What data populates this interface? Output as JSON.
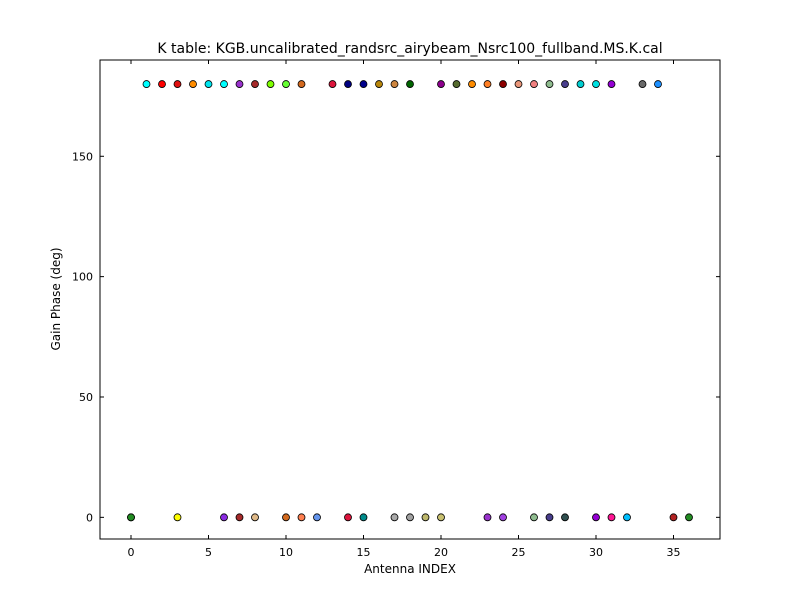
{
  "chart_data": {
    "type": "scatter",
    "title": "K table: KGB.uncalibrated_randsrc_airybeam_Nsrc100_fullband.MS.K.cal",
    "xlabel": "Antenna INDEX",
    "ylabel": "Gain Phase (deg)",
    "xlim": [
      -2,
      38
    ],
    "ylim": [
      -9,
      190
    ],
    "xticks": [
      0,
      5,
      10,
      15,
      20,
      25,
      30,
      35
    ],
    "yticks": [
      0,
      50,
      100,
      150
    ],
    "grid": false,
    "legend": "none",
    "points": [
      {
        "x": 1,
        "y": 180,
        "color": "#00ffff"
      },
      {
        "x": 2,
        "y": 180,
        "color": "#ff0000"
      },
      {
        "x": 3,
        "y": 180,
        "color": "#e01010"
      },
      {
        "x": 4,
        "y": 180,
        "color": "#ff8c00"
      },
      {
        "x": 5,
        "y": 180,
        "color": "#00e5ee"
      },
      {
        "x": 6,
        "y": 180,
        "color": "#00ffff"
      },
      {
        "x": 7,
        "y": 180,
        "color": "#9932cc"
      },
      {
        "x": 8,
        "y": 180,
        "color": "#a52a2a"
      },
      {
        "x": 9,
        "y": 180,
        "color": "#7fff00"
      },
      {
        "x": 10,
        "y": 180,
        "color": "#66ff33"
      },
      {
        "x": 11,
        "y": 180,
        "color": "#d2691e"
      },
      {
        "x": 13,
        "y": 180,
        "color": "#dc143c"
      },
      {
        "x": 14,
        "y": 180,
        "color": "#000080"
      },
      {
        "x": 15,
        "y": 180,
        "color": "#00008b"
      },
      {
        "x": 16,
        "y": 180,
        "color": "#b8860b"
      },
      {
        "x": 17,
        "y": 180,
        "color": "#cd853f"
      },
      {
        "x": 18,
        "y": 180,
        "color": "#006400"
      },
      {
        "x": 20,
        "y": 180,
        "color": "#8b008b"
      },
      {
        "x": 21,
        "y": 180,
        "color": "#556b2f"
      },
      {
        "x": 22,
        "y": 180,
        "color": "#ff8c00"
      },
      {
        "x": 23,
        "y": 180,
        "color": "#ff7f24"
      },
      {
        "x": 24,
        "y": 180,
        "color": "#8b0000"
      },
      {
        "x": 25,
        "y": 180,
        "color": "#e9967a"
      },
      {
        "x": 26,
        "y": 180,
        "color": "#f08080"
      },
      {
        "x": 27,
        "y": 180,
        "color": "#8fbc8f"
      },
      {
        "x": 28,
        "y": 180,
        "color": "#483d8b"
      },
      {
        "x": 29,
        "y": 180,
        "color": "#00ced1"
      },
      {
        "x": 30,
        "y": 180,
        "color": "#00e0e0"
      },
      {
        "x": 31,
        "y": 180,
        "color": "#9400d3"
      },
      {
        "x": 33,
        "y": 180,
        "color": "#696969"
      },
      {
        "x": 34,
        "y": 180,
        "color": "#1e90ff"
      },
      {
        "x": 0,
        "y": 0,
        "color": "#00aa00"
      },
      {
        "x": 0,
        "y": 0,
        "color": "#228b22"
      },
      {
        "x": 3,
        "y": 0,
        "color": "#ffff00"
      },
      {
        "x": 6,
        "y": 0,
        "color": "#8a2be2"
      },
      {
        "x": 7,
        "y": 0,
        "color": "#a52a2a"
      },
      {
        "x": 8,
        "y": 0,
        "color": "#deb887"
      },
      {
        "x": 10,
        "y": 0,
        "color": "#d2691e"
      },
      {
        "x": 11,
        "y": 0,
        "color": "#ff7f50"
      },
      {
        "x": 12,
        "y": 0,
        "color": "#6495ed"
      },
      {
        "x": 14,
        "y": 0,
        "color": "#dc143c"
      },
      {
        "x": 15,
        "y": 0,
        "color": "#008b8b"
      },
      {
        "x": 17,
        "y": 0,
        "color": "#a9a9a9"
      },
      {
        "x": 18,
        "y": 0,
        "color": "#a0a0a0"
      },
      {
        "x": 19,
        "y": 0,
        "color": "#bdb76b"
      },
      {
        "x": 20,
        "y": 0,
        "color": "#c8c070"
      },
      {
        "x": 23,
        "y": 0,
        "color": "#9932cc"
      },
      {
        "x": 24,
        "y": 0,
        "color": "#a040e0"
      },
      {
        "x": 26,
        "y": 0,
        "color": "#8fbc8f"
      },
      {
        "x": 27,
        "y": 0,
        "color": "#483d8b"
      },
      {
        "x": 28,
        "y": 0,
        "color": "#2f4f4f"
      },
      {
        "x": 30,
        "y": 0,
        "color": "#9400d3"
      },
      {
        "x": 31,
        "y": 0,
        "color": "#ff1493"
      },
      {
        "x": 32,
        "y": 0,
        "color": "#00bfff"
      },
      {
        "x": 35,
        "y": 0,
        "color": "#b22222"
      },
      {
        "x": 36,
        "y": 0,
        "color": "#228b22"
      }
    ]
  }
}
